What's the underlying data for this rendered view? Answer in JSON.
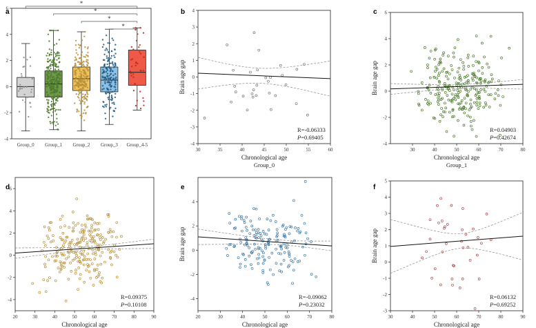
{
  "chart_data": [
    {
      "panel": "a",
      "type": "box",
      "categories": [
        "Group_0",
        "Group_1",
        "Group_2",
        "Group_3",
        "Group_4-5"
      ],
      "ylim": [
        -4,
        6
      ],
      "yticks": [
        -4,
        -2,
        0,
        2,
        4,
        6
      ],
      "box_colors": [
        "#d3d3d3",
        "#6f9a4c",
        "#f0c35a",
        "#8dc0e3",
        "#ef5a48"
      ],
      "point_colors": [
        "#8c8c8c",
        "#4c7a2c",
        "#b8913a",
        "#1e5a82",
        "#c0281b"
      ],
      "boxes": [
        {
          "name": "Group_0",
          "whisker_low": -3.4,
          "q1": -0.8,
          "median": 0.0,
          "q3": 0.7,
          "whisker_high": 3.3
        },
        {
          "name": "Group_1",
          "whisker_low": -3.3,
          "q1": -0.8,
          "median": 0.2,
          "q3": 1.2,
          "whisker_high": 4.3
        },
        {
          "name": "Group_2",
          "whisker_low": -3.4,
          "q1": -0.3,
          "median": 0.6,
          "q3": 1.5,
          "whisker_high": 4.2
        },
        {
          "name": "Group_3",
          "whisker_low": -2.9,
          "q1": -0.4,
          "median": 0.5,
          "q3": 1.5,
          "whisker_high": 4.4
        },
        {
          "name": "Group_4-5",
          "whisker_low": -1.8,
          "q1": 0.1,
          "median": 1.1,
          "q3": 2.8,
          "whisker_high": 4.5
        }
      ],
      "point_counts": [
        30,
        260,
        240,
        170,
        38
      ],
      "significance": [
        {
          "from": "Group_0",
          "to": "Group_4-5",
          "label": "*"
        },
        {
          "from": "Group_1",
          "to": "Group_4-5",
          "label": "*"
        },
        {
          "from": "Group_2",
          "to": "Group_4-5",
          "label": "*"
        },
        {
          "from": "Group_3",
          "to": "Group_4-5",
          "label": "*"
        }
      ]
    },
    {
      "panel": "b",
      "type": "scatter",
      "subtitle": "Group_0",
      "xlabel": "Chronological age",
      "ylabel": "Brain age gap",
      "xlim": [
        30,
        60
      ],
      "ylim": [
        -4,
        4
      ],
      "xticks": [
        30,
        35,
        40,
        45,
        50,
        55,
        60
      ],
      "yticks": [
        -4,
        -3,
        -2,
        -1,
        0,
        1,
        2,
        3,
        4
      ],
      "R": "R=-0.06333",
      "P": "P=0.69405",
      "fit": {
        "intercept": 0.55,
        "slope": -0.0108,
        "ci_mid_x": 44,
        "ci_half_min": 0.45,
        "ci_growth": 0.06
      },
      "n": 30,
      "x_range": [
        30,
        60
      ],
      "sd": 1.4,
      "seed": 11,
      "point_color": "#777777"
    },
    {
      "panel": "c",
      "type": "scatter",
      "subtitle": "Group_1",
      "xlabel": "Chronological age",
      "ylabel": "Brain age gap",
      "xlim": [
        20,
        80
      ],
      "ylim": [
        -4,
        6
      ],
      "xticks": [
        30,
        40,
        50,
        60,
        70,
        80
      ],
      "yticks": [
        -4,
        -2,
        0,
        2,
        4,
        6
      ],
      "R": "R=0.04903",
      "P": "P=0.42674",
      "fit": {
        "intercept": 0.05,
        "slope": 0.0059,
        "ci_mid_x": 52,
        "ci_half_min": 0.15,
        "ci_growth": 0.012
      },
      "n": 260,
      "x_range": [
        27,
        77
      ],
      "sd": 1.4,
      "seed": 22,
      "point_color": "#4c7a2c"
    },
    {
      "panel": "d",
      "type": "scatter",
      "subtitle": "Group_2",
      "xlabel": "Chronological age",
      "ylabel": "",
      "xlim": [
        20,
        90
      ],
      "ylim": [
        -5,
        7
      ],
      "xticks": [
        20,
        30,
        40,
        50,
        60,
        70,
        80,
        90
      ],
      "yticks": [
        -4,
        -2,
        0,
        2,
        4,
        6
      ],
      "R": "R=0.09375",
      "P": "P=0.10108",
      "fit": {
        "intercept": -0.05,
        "slope": 0.012,
        "ci_mid_x": 57,
        "ci_half_min": 0.15,
        "ci_growth": 0.012
      },
      "n": 240,
      "x_range": [
        25,
        80
      ],
      "sd": 1.5,
      "seed": 33,
      "point_color": "#b8913a"
    },
    {
      "panel": "e",
      "type": "scatter",
      "subtitle": "Group_3",
      "xlabel": "Chronological age",
      "ylabel": "Brain age gap",
      "xlim": [
        20,
        80
      ],
      "ylim": [
        -5,
        6
      ],
      "xticks": [
        20,
        30,
        40,
        50,
        60,
        70,
        80
      ],
      "yticks": [
        -4,
        -2,
        0,
        2,
        4
      ],
      "R": "R=-0.09062",
      "P": "P=0.23032",
      "fit": {
        "intercept": 1.35,
        "slope": -0.0125,
        "ci_mid_x": 58,
        "ci_half_min": 0.2,
        "ci_growth": 0.016
      },
      "n": 170,
      "x_range": [
        25,
        78
      ],
      "sd": 1.5,
      "seed": 44,
      "point_color": "#3f7aa6"
    },
    {
      "panel": "f",
      "type": "scatter",
      "subtitle": "Group_4-5",
      "xlabel": "Chronological age",
      "ylabel": "Brain age gap",
      "xlim": [
        30,
        90
      ],
      "ylim": [
        -3,
        5
      ],
      "xticks": [
        30,
        40,
        50,
        60,
        70,
        80,
        90
      ],
      "yticks": [
        -3,
        -2,
        -1,
        0,
        1,
        2,
        3,
        4,
        5
      ],
      "R": "R=0.06132",
      "P": "P=0.69252",
      "fit": {
        "intercept": 0.65,
        "slope": 0.0105,
        "ci_mid_x": 62,
        "ci_half_min": 0.45,
        "ci_growth": 0.05
      },
      "n": 38,
      "x_range": [
        38,
        82
      ],
      "sd": 1.5,
      "seed": 55,
      "point_color": "#b04a4a"
    }
  ]
}
